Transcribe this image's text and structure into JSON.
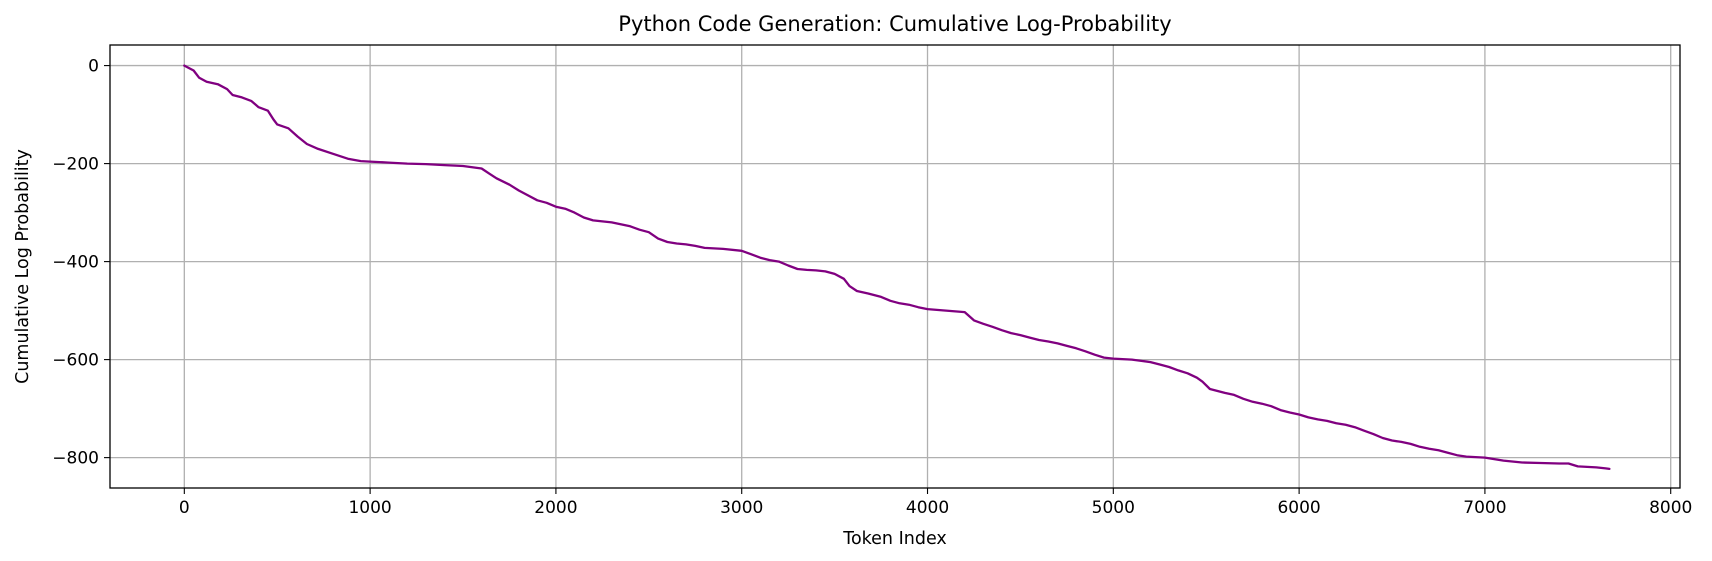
{
  "chart_data": {
    "type": "line",
    "title": "Python Code Generation: Cumulative Log-Probability",
    "xlabel": "Token Index",
    "ylabel": "Cumulative Log Probability",
    "xlim": [
      -400,
      8050
    ],
    "ylim": [
      -862,
      42
    ],
    "xticks": [
      0,
      1000,
      2000,
      3000,
      4000,
      5000,
      6000,
      7000,
      8000
    ],
    "yticks": [
      0,
      -200,
      -400,
      -600,
      -800
    ],
    "grid": true,
    "line_color": "#800080",
    "series": [
      {
        "x": [
          0,
          50,
          80,
          120,
          180,
          230,
          260,
          310,
          360,
          400,
          450,
          480,
          500,
          560,
          610,
          660,
          720,
          800,
          880,
          950,
          1000,
          1100,
          1200,
          1300,
          1400,
          1500,
          1600,
          1640,
          1680,
          1750,
          1800,
          1850,
          1900,
          1950,
          2000,
          2050,
          2100,
          2150,
          2200,
          2300,
          2400,
          2450,
          2500,
          2550,
          2600,
          2650,
          2700,
          2750,
          2800,
          2900,
          3000,
          3050,
          3100,
          3150,
          3200,
          3250,
          3300,
          3350,
          3400,
          3450,
          3500,
          3550,
          3580,
          3620,
          3680,
          3750,
          3800,
          3850,
          3900,
          3950,
          4000,
          4100,
          4200,
          4250,
          4300,
          4350,
          4400,
          4450,
          4500,
          4550,
          4600,
          4650,
          4700,
          4750,
          4800,
          4850,
          4900,
          4950,
          5000,
          5100,
          5200,
          5250,
          5300,
          5350,
          5400,
          5450,
          5480,
          5520,
          5600,
          5650,
          5700,
          5750,
          5800,
          5850,
          5900,
          5950,
          6000,
          6050,
          6100,
          6150,
          6200,
          6250,
          6300,
          6350,
          6400,
          6450,
          6500,
          6550,
          6600,
          6650,
          6700,
          6750,
          6800,
          6850,
          6900,
          7000,
          7050,
          7100,
          7200,
          7300,
          7400,
          7450,
          7500,
          7550,
          7600,
          7650,
          7670
        ],
        "y": [
          0,
          -10,
          -25,
          -33,
          -38,
          -48,
          -60,
          -65,
          -72,
          -85,
          -92,
          -110,
          -120,
          -128,
          -145,
          -160,
          -170,
          -180,
          -190,
          -195,
          -196,
          -198,
          -200,
          -201,
          -203,
          -205,
          -210,
          -220,
          -230,
          -243,
          -255,
          -265,
          -275,
          -280,
          -288,
          -292,
          -300,
          -310,
          -316,
          -320,
          -328,
          -335,
          -340,
          -353,
          -360,
          -363,
          -365,
          -368,
          -372,
          -374,
          -378,
          -385,
          -392,
          -397,
          -400,
          -408,
          -415,
          -417,
          -418,
          -420,
          -425,
          -435,
          -450,
          -460,
          -465,
          -472,
          -480,
          -485,
          -488,
          -493,
          -497,
          -500,
          -503,
          -520,
          -527,
          -533,
          -540,
          -546,
          -550,
          -555,
          -560,
          -563,
          -567,
          -572,
          -577,
          -583,
          -590,
          -596,
          -598,
          -600,
          -605,
          -610,
          -615,
          -622,
          -628,
          -637,
          -645,
          -660,
          -668,
          -672,
          -680,
          -686,
          -690,
          -695,
          -703,
          -708,
          -712,
          -718,
          -722,
          -725,
          -730,
          -733,
          -738,
          -745,
          -752,
          -760,
          -765,
          -768,
          -772,
          -778,
          -782,
          -785,
          -790,
          -795,
          -798,
          -800,
          -803,
          -806,
          -810,
          -811,
          -812,
          -812,
          -818,
          -819,
          -820,
          -822,
          -823
        ]
      }
    ]
  }
}
